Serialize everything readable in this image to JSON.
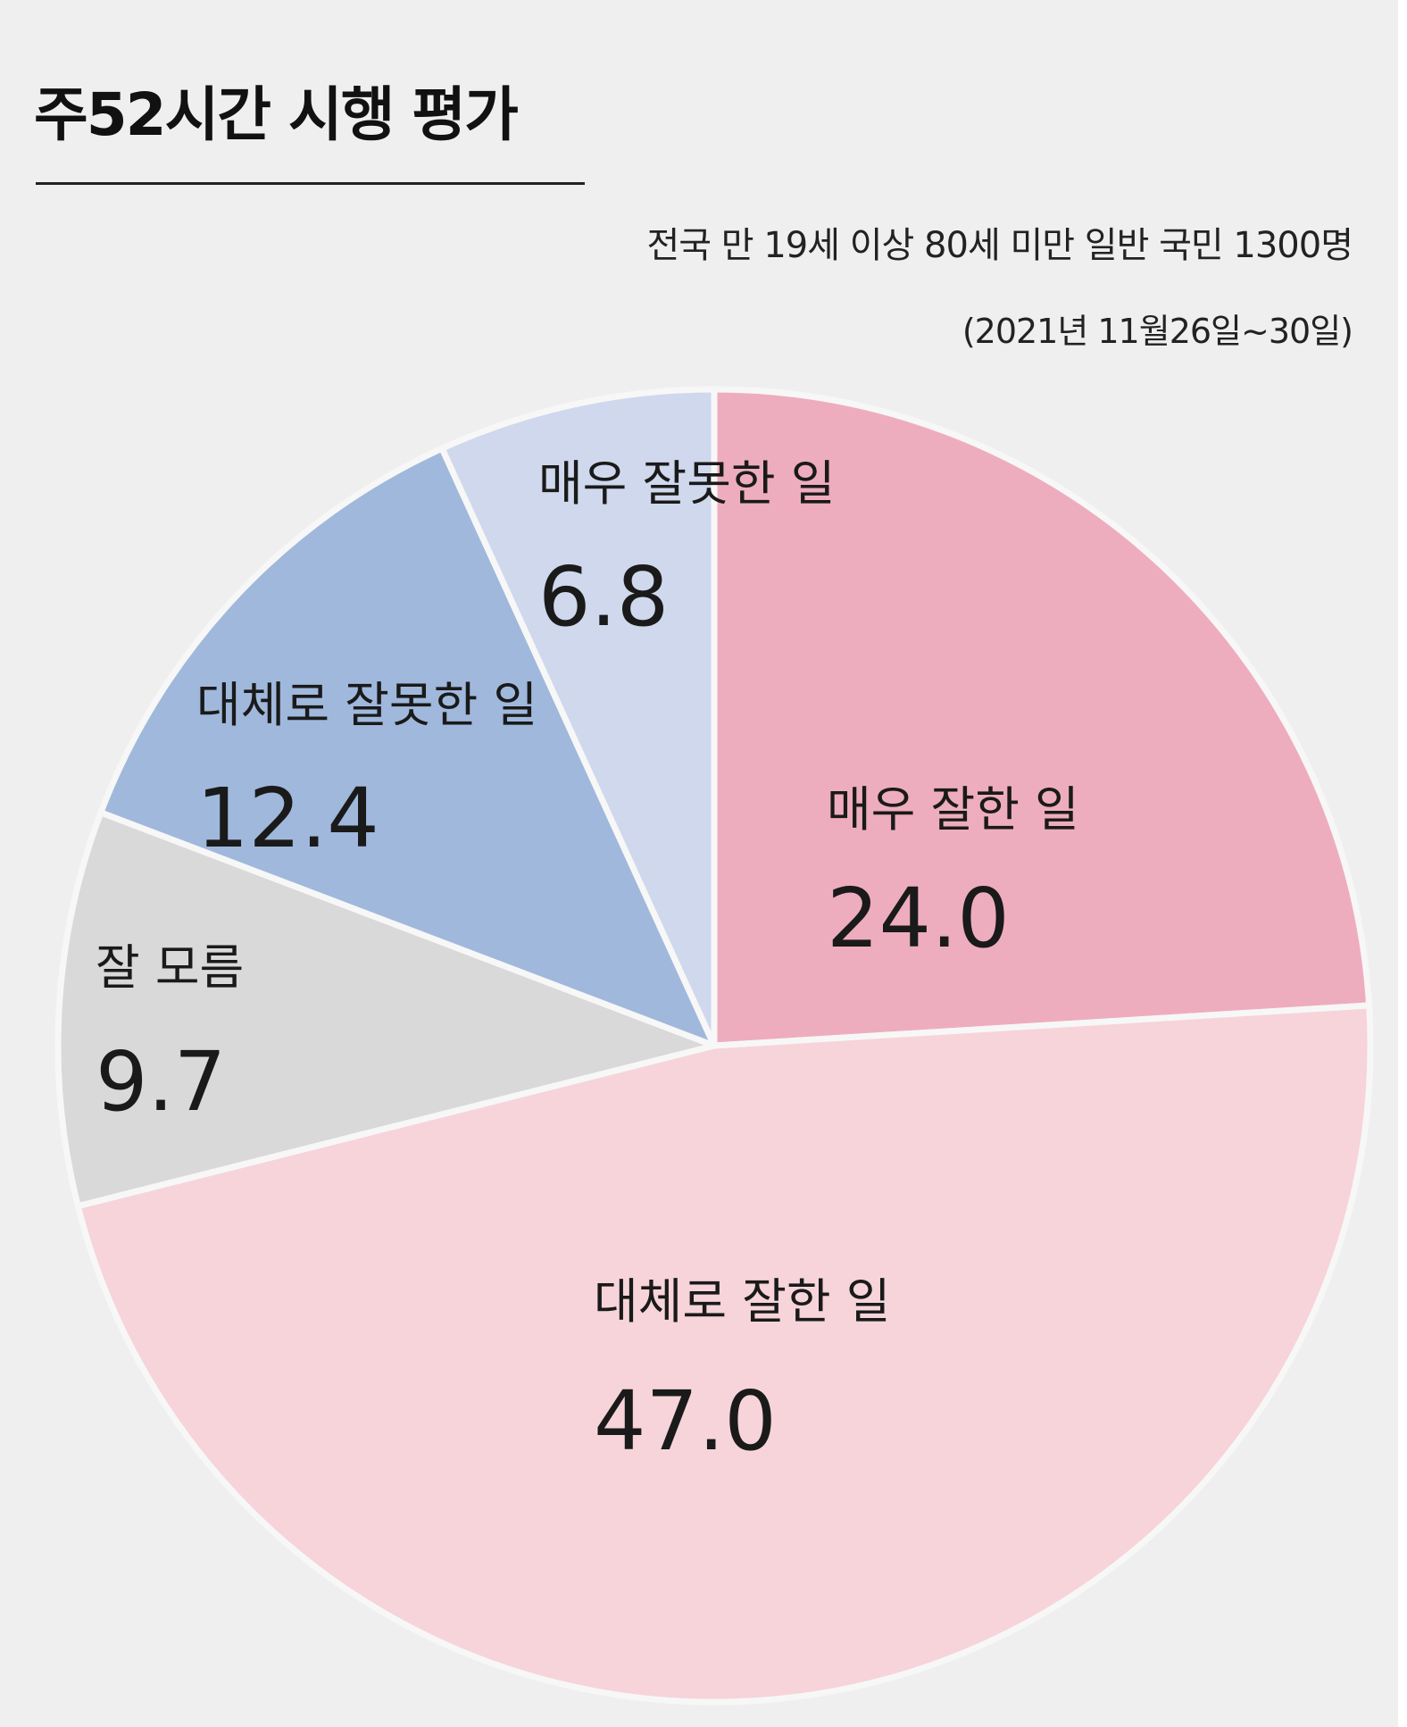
{
  "title": "주52시간 시행 평가",
  "note": {
    "line1": "전국 만 19세 이상 80세 미만 일반 국민 1300명",
    "line2": "(2021년 11월26일~30일)"
  },
  "colors": {
    "background": "#efefef",
    "separator": "#f7f7f7"
  },
  "chart_data": {
    "type": "pie",
    "title": "주52시간 시행 평가",
    "start_angle_deg": 0,
    "direction": "clockwise",
    "slices": [
      {
        "label": "매우 잘한 일",
        "value": 24.0,
        "display": "24.0",
        "color": "#eeadbe"
      },
      {
        "label": "대체로 잘한 일",
        "value": 47.0,
        "display": "47.0",
        "color": "#f6d4da"
      },
      {
        "label": "잘 모름",
        "value": 9.7,
        "display": "9.7",
        "color": "#d9d9d9"
      },
      {
        "label": "대체로 잘못한 일",
        "value": 12.4,
        "display": "12.4",
        "color": "#a0b8dc"
      },
      {
        "label": "매우 잘못한 일",
        "value": 6.8,
        "display": "6.8",
        "color": "#cfd8ec"
      }
    ]
  }
}
